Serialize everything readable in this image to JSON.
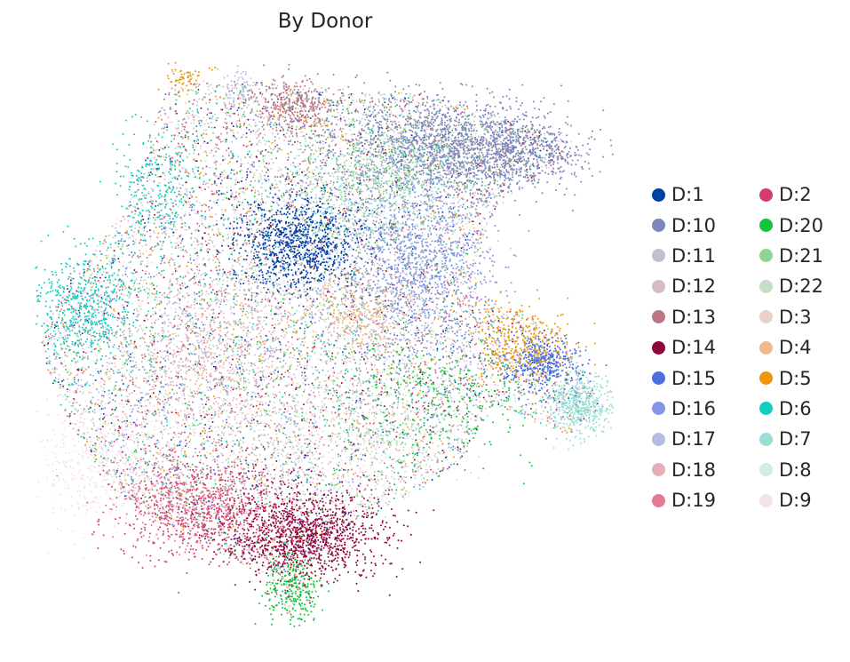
{
  "chart_data": {
    "type": "scatter",
    "title": "By Donor",
    "xlabel": "",
    "ylabel": "",
    "grid": false,
    "axes_visible": false,
    "legend_placement": "right",
    "series": [
      {
        "name": "D:1",
        "color": "#023fa5"
      },
      {
        "name": "D:10",
        "color": "#7d87b9"
      },
      {
        "name": "D:11",
        "color": "#bec1d4"
      },
      {
        "name": "D:12",
        "color": "#d6bcc0"
      },
      {
        "name": "D:13",
        "color": "#bb7784"
      },
      {
        "name": "D:14",
        "color": "#8e063b"
      },
      {
        "name": "D:15",
        "color": "#4a6fe3"
      },
      {
        "name": "D:16",
        "color": "#8595e1"
      },
      {
        "name": "D:17",
        "color": "#b5bbe3"
      },
      {
        "name": "D:18",
        "color": "#e6afb9"
      },
      {
        "name": "D:19",
        "color": "#e07b91"
      },
      {
        "name": "D:2",
        "color": "#d33f6a"
      },
      {
        "name": "D:20",
        "color": "#11c638"
      },
      {
        "name": "D:21",
        "color": "#8dd593"
      },
      {
        "name": "D:22",
        "color": "#c6dec7"
      },
      {
        "name": "D:3",
        "color": "#ead3c6"
      },
      {
        "name": "D:4",
        "color": "#f0b98d"
      },
      {
        "name": "D:5",
        "color": "#ef9708"
      },
      {
        "name": "D:6",
        "color": "#0fcfc0"
      },
      {
        "name": "D:7",
        "color": "#9cded6"
      },
      {
        "name": "D:8",
        "color": "#d5eae7"
      },
      {
        "name": "D:9",
        "color": "#f3e1eb"
      }
    ]
  }
}
